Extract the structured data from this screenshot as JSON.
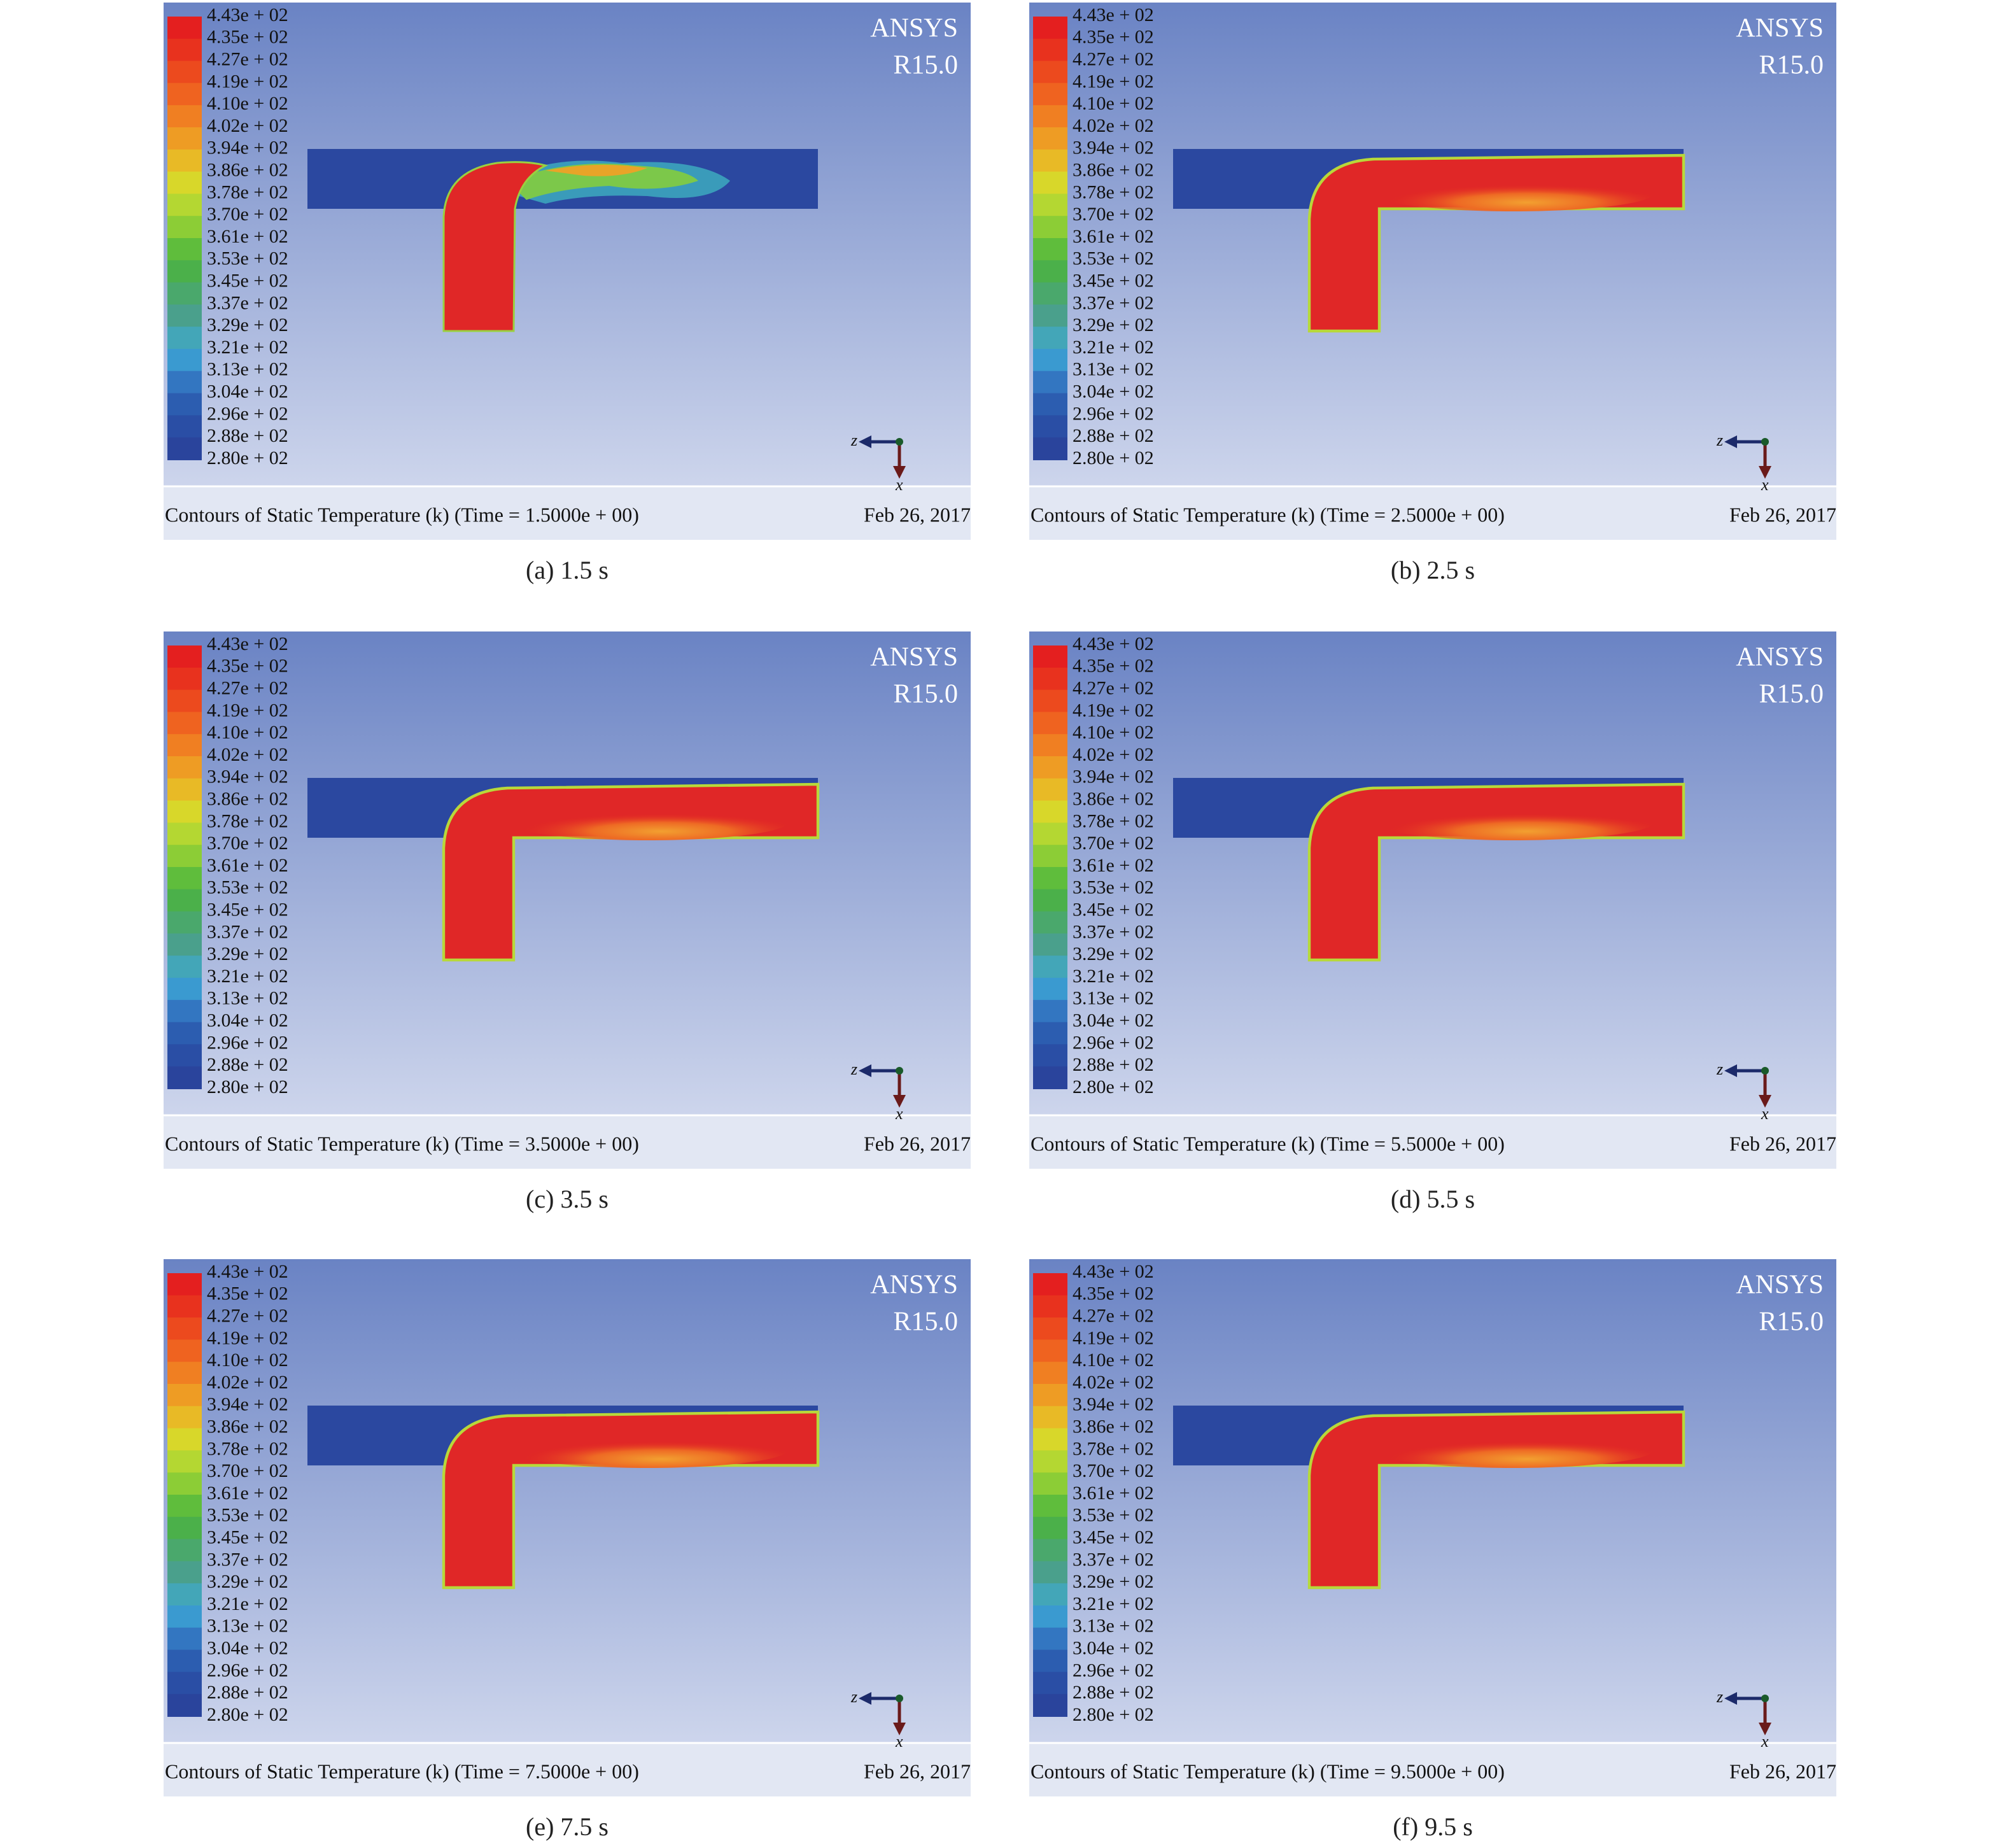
{
  "common": {
    "legend_labels": [
      "4.43e + 02",
      "4.35e + 02",
      "4.27e + 02",
      "4.19e + 02",
      "4.10e + 02",
      "4.02e + 02",
      "3.94e + 02",
      "3.86e + 02",
      "3.78e + 02",
      "3.70e + 02",
      "3.61e + 02",
      "3.53e + 02",
      "3.45e + 02",
      "3.37e + 02",
      "3.29e + 02",
      "3.21e + 02",
      "3.13e + 02",
      "3.04e + 02",
      "2.96e + 02",
      "2.88e + 02",
      "2.80e + 02"
    ],
    "legend_colors": [
      "#e41f1f",
      "#e8321e",
      "#ec4a1e",
      "#ef6320",
      "#f07f22",
      "#ee9c24",
      "#e8ba26",
      "#d8d72a",
      "#b4d732",
      "#8ccd36",
      "#5fbd3c",
      "#4bb04a",
      "#4aa86c",
      "#4aa08c",
      "#43a6b8",
      "#3a9ad0",
      "#3376c1",
      "#2c5db0",
      "#2a4ea5",
      "#2a449c"
    ],
    "brand": "ANSYS",
    "version": "R15.0",
    "date": "Feb 26, 2017",
    "axis_z": "z",
    "axis_x": "x"
  },
  "panels": [
    {
      "caption": "(a) 1.5 s",
      "footer": "Contours of Static Temperature (k) (Time = 1.5000e + 00)"
    },
    {
      "caption": "(b) 2.5 s",
      "footer": "Contours of Static Temperature (k) (Time = 2.5000e + 00)"
    },
    {
      "caption": "(c) 3.5 s",
      "footer": "Contours of Static Temperature (k) (Time = 3.5000e + 00)"
    },
    {
      "caption": "(d) 5.5 s",
      "footer": "Contours of Static Temperature (k) (Time = 5.5000e + 00)"
    },
    {
      "caption": "(e) 7.5 s",
      "footer": "Contours of Static Temperature (k) (Time = 7.5000e + 00)"
    },
    {
      "caption": "(f) 9.5 s",
      "footer": "Contours of Static Temperature (k) (Time = 9.5000e + 00)"
    }
  ]
}
